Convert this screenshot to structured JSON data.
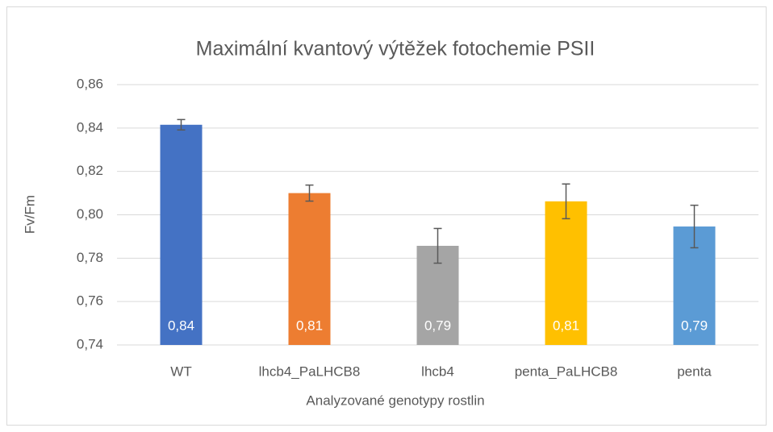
{
  "chart_data": {
    "type": "bar",
    "title": "Maximální kvantový výtěžek fotochemie PSII",
    "x_label": "Analyzované genotypy rostlin",
    "y_label": "Fv/Fm",
    "categories": [
      "WT",
      "lhcb4_PaLHCB8",
      "lhcb4",
      "penta_PaLHCB8",
      "penta"
    ],
    "values": [
      0.8415,
      0.81,
      0.7857,
      0.8062,
      0.7946
    ],
    "errors": [
      0.0024,
      0.0037,
      0.008,
      0.008,
      0.0098
    ],
    "value_labels": [
      "0,84",
      "0,81",
      "0,79",
      "0,81",
      "0,79"
    ],
    "colors": [
      "#4472c4",
      "#ed7d31",
      "#a5a5a5",
      "#ffc000",
      "#5b9bd5"
    ],
    "ylim": [
      0.74,
      0.86
    ],
    "yticks": [
      {
        "value": 0.74,
        "label": "0,74"
      },
      {
        "value": 0.76,
        "label": "0,76"
      },
      {
        "value": 0.78,
        "label": "0,78"
      },
      {
        "value": 0.8,
        "label": "0,80"
      },
      {
        "value": 0.82,
        "label": "0,82"
      },
      {
        "value": 0.84,
        "label": "0,84"
      },
      {
        "value": 0.86,
        "label": "0,86"
      }
    ],
    "grid": true
  }
}
